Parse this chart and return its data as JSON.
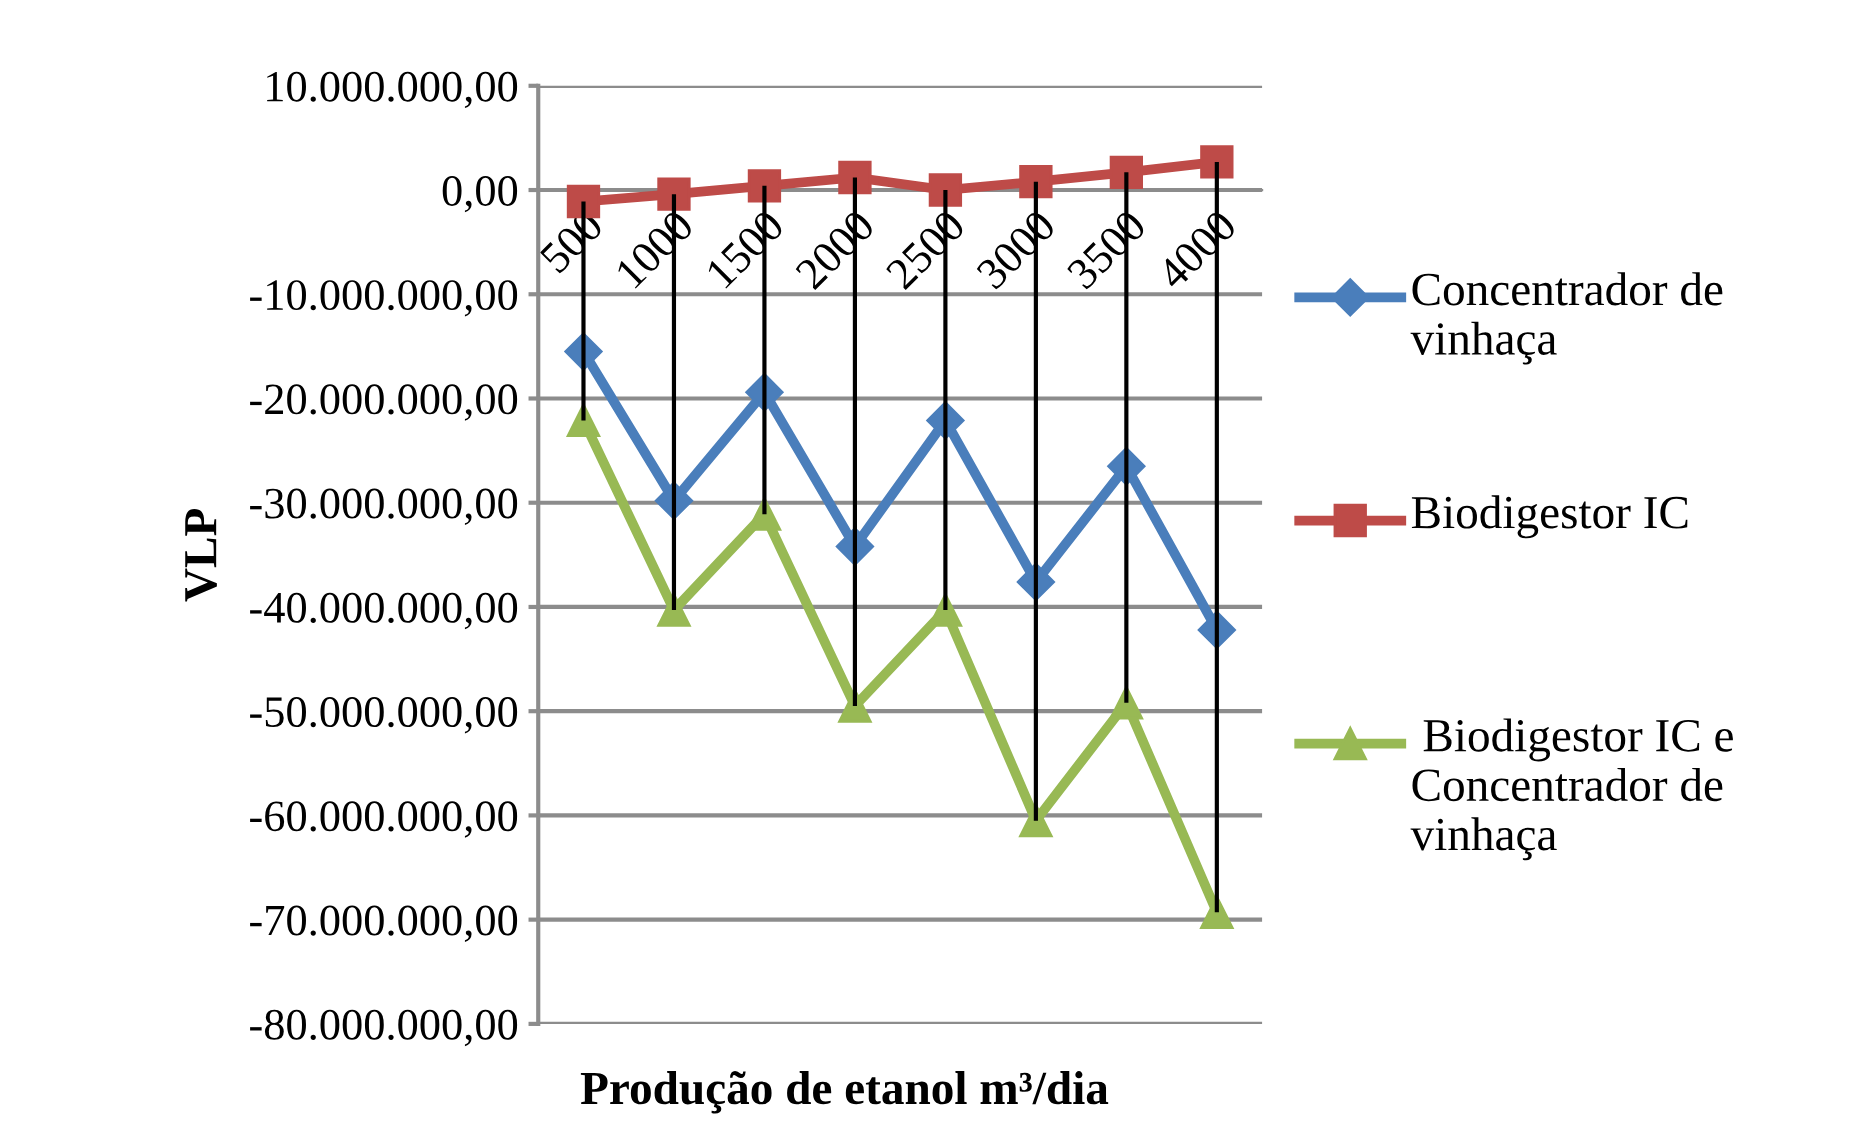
{
  "chart_data": {
    "type": "line",
    "xlabel": "Produção de etanol m³/dia",
    "ylabel": "VLP",
    "categories": [
      "500",
      "1000",
      "1500",
      "2000",
      "2500",
      "3000",
      "3500",
      "4000"
    ],
    "series": [
      {
        "name": "Concentrador de vinhaça",
        "color": "#4a7ebb",
        "marker": "diamond",
        "values": [
          -15500000,
          -29800000,
          -19400000,
          -34200000,
          -22100000,
          -37600000,
          -26500000,
          -42200000
        ]
      },
      {
        "name": "Biodigestor IC",
        "color": "#be4b48",
        "marker": "square",
        "values": [
          -1100000,
          -400000,
          400000,
          1200000,
          0,
          800000,
          1700000,
          2700000
        ]
      },
      {
        "name": " Biodigestor IC e Concentrador de vinhaça",
        "color": "#98b954",
        "marker": "triangle",
        "values": [
          -22100000,
          -40300000,
          -31100000,
          -49500000,
          -40300000,
          -60500000,
          -49200000,
          -69300000
        ],
        "errors": [
          [
            -22100000,
            -1100000
          ],
          [
            -40300000,
            -400000
          ],
          [
            -31100000,
            400000
          ],
          [
            -49500000,
            1200000
          ],
          [
            -40300000,
            0
          ],
          [
            -60500000,
            800000
          ],
          [
            -49200000,
            1700000
          ],
          [
            -69300000,
            2700000
          ]
        ]
      }
    ],
    "ylim": [
      -80000000,
      10000000
    ],
    "yticks": [
      {
        "value": -80000000,
        "label": "-80.000.000,00"
      },
      {
        "value": -70000000,
        "label": "-70.000.000,00"
      },
      {
        "value": -60000000,
        "label": "-60.000.000,00"
      },
      {
        "value": -50000000,
        "label": "-50.000.000,00"
      },
      {
        "value": -40000000,
        "label": "-40.000.000,00"
      },
      {
        "value": -30000000,
        "label": "-30.000.000,00"
      },
      {
        "value": -20000000,
        "label": "-20.000.000,00"
      },
      {
        "value": -10000000,
        "label": "-10.000.000,00"
      },
      {
        "value": 0,
        "label": "0,00"
      },
      {
        "value": 10000000,
        "label": "10.000.000,00"
      }
    ],
    "grid": "y",
    "legend": "right"
  }
}
